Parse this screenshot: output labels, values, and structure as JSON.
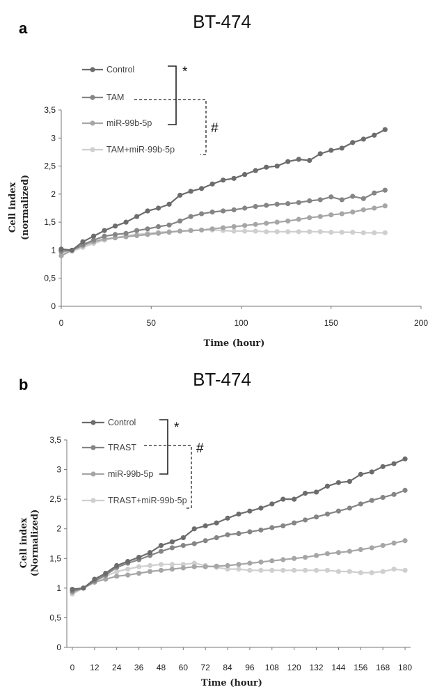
{
  "chart_data": [
    {
      "id": "a",
      "panel_label": "a",
      "type": "line",
      "title": "BT-474",
      "xlabel": "Time (hour)",
      "ylabel": "Cell index",
      "ylabel2": "(normalized)",
      "xlim": [
        0,
        200
      ],
      "ylim": [
        0,
        3.5
      ],
      "x_tick_labels": [
        "0",
        "50",
        "100",
        "150",
        "200"
      ],
      "x_tick_values": [
        0,
        50,
        100,
        150,
        200
      ],
      "y_tick_labels": [
        "0",
        "0,5",
        "1",
        "1,5",
        "2",
        "2,5",
        "3",
        "3,5"
      ],
      "y_tick_values": [
        0,
        0.5,
        1,
        1.5,
        2,
        2.5,
        3,
        3.5
      ],
      "significance": {
        "star": "*",
        "hash": "#"
      },
      "x": [
        0,
        6,
        12,
        18,
        24,
        30,
        36,
        42,
        48,
        54,
        60,
        66,
        72,
        78,
        84,
        90,
        96,
        102,
        108,
        114,
        120,
        126,
        132,
        138,
        144,
        150,
        156,
        162,
        168,
        174,
        180
      ],
      "series": [
        {
          "name": "Control",
          "color": "#6c6c6c",
          "values": [
            1.02,
            1.0,
            1.15,
            1.25,
            1.35,
            1.43,
            1.5,
            1.6,
            1.7,
            1.75,
            1.82,
            1.98,
            2.05,
            2.1,
            2.18,
            2.25,
            2.28,
            2.35,
            2.42,
            2.48,
            2.5,
            2.58,
            2.62,
            2.6,
            2.72,
            2.78,
            2.82,
            2.92,
            2.98,
            3.05,
            3.15
          ]
        },
        {
          "name": "TAM",
          "color": "#858585",
          "values": [
            0.98,
            1.0,
            1.1,
            1.18,
            1.25,
            1.28,
            1.3,
            1.35,
            1.38,
            1.42,
            1.45,
            1.52,
            1.6,
            1.65,
            1.68,
            1.7,
            1.72,
            1.75,
            1.78,
            1.8,
            1.82,
            1.83,
            1.85,
            1.88,
            1.9,
            1.95,
            1.9,
            1.96,
            1.92,
            2.02,
            2.07
          ]
        },
        {
          "name": "miR-99b-5p",
          "color": "#a6a6a6",
          "values": [
            0.9,
            1.0,
            1.08,
            1.15,
            1.2,
            1.22,
            1.24,
            1.26,
            1.28,
            1.3,
            1.32,
            1.34,
            1.35,
            1.36,
            1.38,
            1.4,
            1.42,
            1.44,
            1.46,
            1.48,
            1.5,
            1.52,
            1.55,
            1.58,
            1.6,
            1.63,
            1.65,
            1.68,
            1.72,
            1.75,
            1.79
          ]
        },
        {
          "name": "TAM+miR-99b-5p",
          "color": "#cfcfcf",
          "values": [
            0.95,
            0.98,
            1.05,
            1.12,
            1.18,
            1.22,
            1.26,
            1.28,
            1.3,
            1.32,
            1.33,
            1.34,
            1.35,
            1.36,
            1.36,
            1.35,
            1.34,
            1.34,
            1.34,
            1.33,
            1.33,
            1.33,
            1.33,
            1.33,
            1.33,
            1.32,
            1.32,
            1.32,
            1.31,
            1.31,
            1.31
          ]
        }
      ]
    },
    {
      "id": "b",
      "panel_label": "b",
      "type": "line",
      "title": "BT-474",
      "xlabel": "Time (hour)",
      "ylabel": "Cell index",
      "ylabel2": "(Normalized)",
      "xlim": [
        -3,
        183
      ],
      "ylim": [
        0,
        3.5
      ],
      "x_tick_labels": [
        "0",
        "12",
        "24",
        "36",
        "48",
        "60",
        "72",
        "84",
        "96",
        "108",
        "120",
        "132",
        "144",
        "156",
        "168",
        "180"
      ],
      "x_tick_values": [
        0,
        12,
        24,
        36,
        48,
        60,
        72,
        84,
        96,
        108,
        120,
        132,
        144,
        156,
        168,
        180
      ],
      "y_tick_labels": [
        "0",
        "0,5",
        "1",
        "1,5",
        "2",
        "2,5",
        "3",
        "3,5"
      ],
      "y_tick_values": [
        0,
        0.5,
        1,
        1.5,
        2,
        2.5,
        3,
        3.5
      ],
      "significance": {
        "star": "*",
        "hash": "#"
      },
      "x": [
        0,
        6,
        12,
        18,
        24,
        30,
        36,
        42,
        48,
        54,
        60,
        66,
        72,
        78,
        84,
        90,
        96,
        102,
        108,
        114,
        120,
        126,
        132,
        138,
        144,
        150,
        156,
        162,
        168,
        174,
        180
      ],
      "series": [
        {
          "name": "Control",
          "color": "#6c6c6c",
          "values": [
            0.98,
            1.0,
            1.15,
            1.25,
            1.38,
            1.45,
            1.52,
            1.6,
            1.72,
            1.78,
            1.85,
            2.0,
            2.05,
            2.1,
            2.18,
            2.25,
            2.3,
            2.35,
            2.42,
            2.5,
            2.5,
            2.6,
            2.62,
            2.72,
            2.78,
            2.8,
            2.92,
            2.96,
            3.05,
            3.1,
            3.18
          ]
        },
        {
          "name": "TRAST",
          "color": "#858585",
          "values": [
            0.95,
            1.0,
            1.12,
            1.22,
            1.35,
            1.42,
            1.48,
            1.55,
            1.62,
            1.68,
            1.72,
            1.75,
            1.8,
            1.85,
            1.9,
            1.92,
            1.95,
            1.98,
            2.02,
            2.05,
            2.1,
            2.15,
            2.2,
            2.25,
            2.3,
            2.35,
            2.42,
            2.48,
            2.53,
            2.58,
            2.65
          ]
        },
        {
          "name": "miR-99b-5p",
          "color": "#a6a6a6",
          "values": [
            0.93,
            1.0,
            1.1,
            1.15,
            1.2,
            1.22,
            1.25,
            1.28,
            1.3,
            1.32,
            1.34,
            1.36,
            1.36,
            1.37,
            1.38,
            1.4,
            1.42,
            1.44,
            1.46,
            1.48,
            1.5,
            1.52,
            1.55,
            1.58,
            1.6,
            1.62,
            1.65,
            1.68,
            1.72,
            1.76,
            1.8
          ]
        },
        {
          "name": "TRAST+miR-99b-5p",
          "color": "#cfcfcf",
          "values": [
            0.9,
            1.0,
            1.1,
            1.2,
            1.28,
            1.32,
            1.36,
            1.38,
            1.4,
            1.4,
            1.4,
            1.42,
            1.38,
            1.35,
            1.32,
            1.32,
            1.3,
            1.3,
            1.3,
            1.3,
            1.3,
            1.3,
            1.3,
            1.3,
            1.28,
            1.28,
            1.26,
            1.26,
            1.28,
            1.32,
            1.3
          ]
        }
      ]
    }
  ]
}
